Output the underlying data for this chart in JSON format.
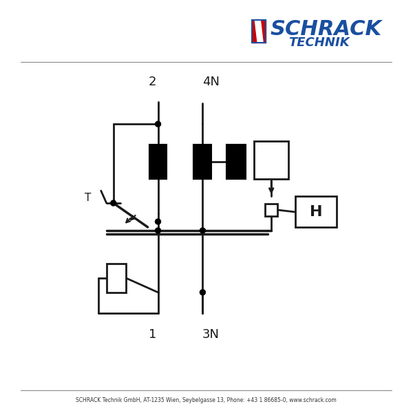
{
  "bg_color": "#f0f0f0",
  "line_color": "#1a1a1a",
  "line_width": 2.0,
  "title_schrack": "SCHRACK",
  "title_technik": "TECHNIK",
  "schrack_color": "#1a4fa0",
  "red_color": "#cc0000",
  "footer_text": "SCHRACK Technik GmbH, AT-1235 Wien, Seybelgasse 13, Phone: +43 1 86685-0, www.schrack.com",
  "label_2": "2",
  "label_4N": "4N",
  "label_1": "1",
  "label_3N": "3N",
  "label_H": "H",
  "label_T": "T"
}
